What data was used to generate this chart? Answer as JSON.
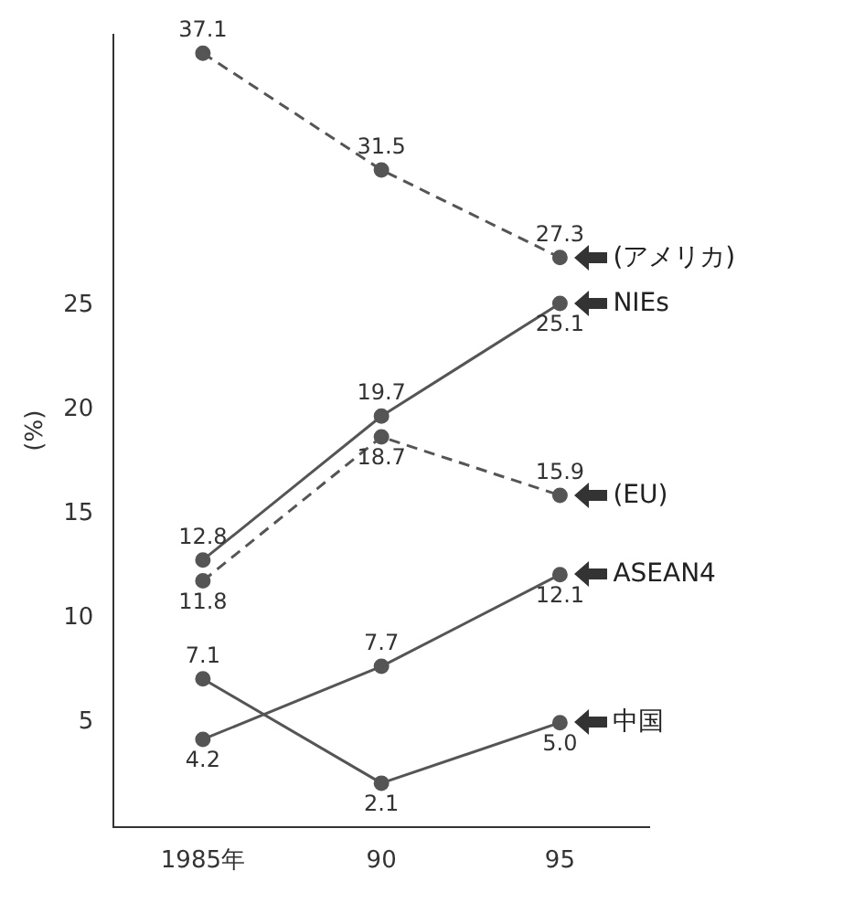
{
  "chart_data": {
    "type": "line",
    "ylabel": "(%)",
    "categories": [
      "1985年",
      "90",
      "95"
    ],
    "ylim": [
      0,
      38
    ],
    "yticks": [
      5,
      10,
      15,
      20,
      25
    ],
    "series": [
      {
        "name": "(アメリカ)",
        "color": "#555555",
        "line_style": "dashed",
        "values": [
          37.1,
          31.5,
          27.3
        ],
        "value_labels": [
          "37.1",
          "31.5",
          "27.3"
        ]
      },
      {
        "name": "NIEs",
        "color": "#555555",
        "line_style": "solid",
        "values": [
          12.8,
          19.7,
          25.1
        ],
        "value_labels": [
          "12.8",
          "19.7",
          "25.1"
        ]
      },
      {
        "name": "(EU)",
        "color": "#555555",
        "line_style": "dashed",
        "values": [
          11.8,
          18.7,
          15.9
        ],
        "value_labels": [
          "11.8",
          "18.7",
          "15.9"
        ]
      },
      {
        "name": "ASEAN4",
        "color": "#555555",
        "line_style": "solid",
        "values": [
          4.2,
          7.7,
          12.1
        ],
        "value_labels": [
          "4.2",
          "7.7",
          "12.1"
        ]
      },
      {
        "name": "中国",
        "color": "#555555",
        "line_style": "solid",
        "values": [
          7.1,
          2.1,
          5.0
        ],
        "value_labels": [
          "7.1",
          "2.1",
          "5.0"
        ]
      }
    ],
    "marker": "circle",
    "grid": false,
    "legend": false
  }
}
